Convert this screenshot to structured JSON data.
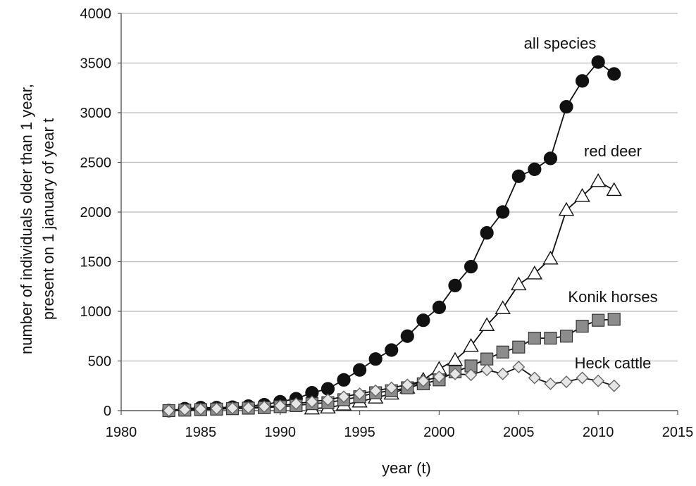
{
  "chart_data": {
    "type": "line",
    "title": "",
    "xlabel": "year (t)",
    "ylabel": "number of individuals older than 1 year, present  on 1 january of year t",
    "ylabel_lines": [
      "number of individuals older than 1 year,",
      "present  on 1 january of year t"
    ],
    "xlim": [
      1980,
      2015
    ],
    "ylim": [
      0,
      4000
    ],
    "xticks": [
      1980,
      1985,
      1990,
      1995,
      2000,
      2005,
      2010,
      2015
    ],
    "yticks": [
      0,
      500,
      1000,
      1500,
      2000,
      2500,
      3000,
      3500,
      4000
    ],
    "grid": "horizontal",
    "legend": "inline labels",
    "series": [
      {
        "name": "all species",
        "marker": "circle",
        "fill": "#111111",
        "stroke": "#111111",
        "x": [
          1983,
          1984,
          1985,
          1986,
          1987,
          1988,
          1989,
          1990,
          1991,
          1992,
          1993,
          1994,
          1995,
          1996,
          1997,
          1998,
          1999,
          2000,
          2001,
          2002,
          2003,
          2004,
          2005,
          2006,
          2007,
          2008,
          2009,
          2010,
          2011
        ],
        "y": [
          0,
          20,
          30,
          30,
          35,
          45,
          60,
          90,
          120,
          180,
          220,
          310,
          410,
          520,
          610,
          750,
          910,
          1040,
          1260,
          1450,
          1790,
          2000,
          2360,
          2430,
          2540,
          3060,
          3320,
          3510,
          3390
        ]
      },
      {
        "name": "red deer",
        "marker": "triangle",
        "fill": "#ffffff",
        "stroke": "#111111",
        "x": [
          1992,
          1993,
          1994,
          1995,
          1996,
          1997,
          1998,
          1999,
          2000,
          2001,
          2002,
          2003,
          2004,
          2005,
          2006,
          2007,
          2008,
          2009,
          2010,
          2011
        ],
        "y": [
          20,
          30,
          60,
          90,
          130,
          170,
          230,
          310,
          420,
          510,
          650,
          860,
          1030,
          1270,
          1380,
          1530,
          2020,
          2160,
          2310,
          2220
        ]
      },
      {
        "name": "Konik horses",
        "marker": "square",
        "fill": "#8c8c8c",
        "stroke": "#333333",
        "x": [
          1983,
          1984,
          1985,
          1986,
          1987,
          1988,
          1989,
          1990,
          1991,
          1992,
          1993,
          1994,
          1995,
          1996,
          1997,
          1998,
          1999,
          2000,
          2001,
          2002,
          2003,
          2004,
          2005,
          2006,
          2007,
          2008,
          2009,
          2010,
          2011
        ],
        "y": [
          0,
          5,
          10,
          15,
          20,
          25,
          30,
          40,
          50,
          70,
          80,
          110,
          140,
          180,
          200,
          230,
          270,
          310,
          390,
          450,
          520,
          590,
          640,
          730,
          730,
          750,
          850,
          910,
          920
        ]
      },
      {
        "name": "Heck cattle",
        "marker": "diamond",
        "fill": "#e6e6e6",
        "stroke": "#666666",
        "x": [
          1983,
          1984,
          1985,
          1986,
          1987,
          1988,
          1989,
          1990,
          1991,
          1992,
          1993,
          1994,
          1995,
          1996,
          1997,
          1998,
          1999,
          2000,
          2001,
          2002,
          2003,
          2004,
          2005,
          2006,
          2007,
          2008,
          2009,
          2010,
          2011
        ],
        "y": [
          0,
          10,
          15,
          20,
          25,
          30,
          40,
          50,
          70,
          90,
          110,
          140,
          170,
          200,
          230,
          260,
          300,
          340,
          370,
          360,
          410,
          370,
          440,
          330,
          270,
          290,
          330,
          300,
          250
        ]
      }
    ],
    "annotations": [
      {
        "text": "all species",
        "near_series": "all species"
      },
      {
        "text": "red deer",
        "near_series": "red deer"
      },
      {
        "text": "Konik horses",
        "near_series": "Konik horses"
      },
      {
        "text": "Heck cattle",
        "near_series": "Heck cattle"
      }
    ]
  }
}
